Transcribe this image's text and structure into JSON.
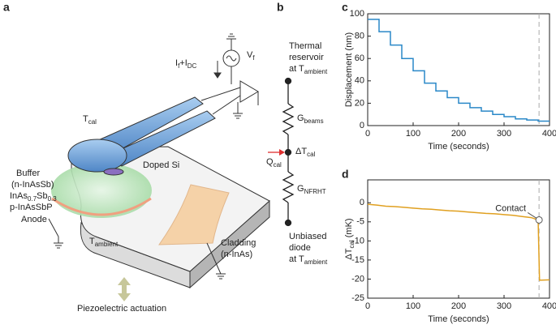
{
  "diagram": {
    "panel_a": {
      "label": "a",
      "texts": [
        [
          {
            "t": "I"
          },
          {
            "sub": "f"
          },
          {
            "t": "+I"
          },
          {
            "sub": "DC"
          }
        ],
        [
          {
            "t": "V"
          },
          {
            "sub": "f"
          }
        ],
        [
          {
            "t": "T"
          },
          {
            "sub": "cal"
          }
        ],
        [
          {
            "t": "Doped Si"
          }
        ],
        [
          {
            "t": "Buffer"
          }
        ],
        [
          {
            "t": "(n-InAsSb)"
          }
        ],
        [
          {
            "t": "InAs"
          },
          {
            "sub": "0.7"
          },
          {
            "t": "Sb"
          },
          {
            "sub": "0.3"
          }
        ],
        [
          {
            "t": "p-InAsSbP"
          }
        ],
        [
          {
            "t": "Anode"
          }
        ],
        [
          {
            "t": "T"
          },
          {
            "sub": "ambient"
          }
        ],
        [
          {
            "t": "Cladding"
          }
        ],
        [
          {
            "t": "(n-InAs)"
          }
        ],
        [
          {
            "t": "Piezoelectric actuation"
          }
        ]
      ]
    },
    "panel_b": {
      "label": "b",
      "texts": [
        [
          {
            "t": "Thermal"
          }
        ],
        [
          {
            "t": "reservoir"
          }
        ],
        [
          {
            "t": "at T"
          },
          {
            "sub": "ambient"
          }
        ],
        [
          {
            "t": "G"
          },
          {
            "sub": "beams"
          }
        ],
        [
          {
            "t": "ΔT"
          },
          {
            "sub": "cal"
          }
        ],
        [
          {
            "t": "Q"
          },
          {
            "sub": "cal"
          }
        ],
        [
          {
            "t": "G"
          },
          {
            "sub": "NFRHT"
          }
        ],
        [
          {
            "t": "Unbiased"
          }
        ],
        [
          {
            "t": "diode"
          }
        ],
        [
          {
            "t": "at T"
          },
          {
            "sub": "ambient"
          }
        ]
      ]
    }
  },
  "chart_data": [
    {
      "panel": "c",
      "type": "line",
      "color": "#2a88c8",
      "ylabel": [
        {
          "t": "Displacement (nm)"
        }
      ],
      "xlabel": "Time (seconds)",
      "x": [
        0,
        25,
        25,
        50,
        50,
        75,
        75,
        100,
        100,
        125,
        125,
        150,
        150,
        175,
        175,
        200,
        200,
        225,
        225,
        250,
        250,
        275,
        275,
        300,
        300,
        325,
        325,
        350,
        350,
        375,
        375,
        400
      ],
      "values": [
        95,
        95,
        84,
        84,
        72,
        72,
        60,
        60,
        49,
        49,
        38,
        38,
        31,
        31,
        25,
        25,
        20,
        20,
        16,
        16,
        13,
        13,
        10,
        10,
        8,
        8,
        6,
        6,
        5,
        5,
        4,
        4
      ],
      "xlim": [
        0,
        400
      ],
      "ylim": [
        0,
        100
      ],
      "xticks": [
        0,
        100,
        200,
        300,
        400
      ],
      "yticks": [
        0,
        20,
        40,
        60,
        80,
        100
      ],
      "vline_x": 377
    },
    {
      "panel": "d",
      "type": "line",
      "color": "#e0a020",
      "ylabel": [
        {
          "t": "ΔT"
        },
        {
          "sub": "cal"
        },
        {
          "t": " (mK)"
        }
      ],
      "xlabel": "Time (seconds)",
      "x": [
        0,
        20,
        40,
        60,
        80,
        100,
        120,
        140,
        160,
        180,
        200,
        220,
        240,
        260,
        280,
        300,
        320,
        340,
        360,
        375,
        378,
        400
      ],
      "values": [
        -0.4,
        -0.6,
        -0.9,
        -1.0,
        -1.2,
        -1.4,
        -1.6,
        -1.7,
        -1.9,
        -2.1,
        -2.2,
        -2.4,
        -2.6,
        -2.8,
        -2.9,
        -3.1,
        -3.3,
        -3.6,
        -3.9,
        -4.5,
        -20.3,
        -20.2
      ],
      "xlim": [
        0,
        400
      ],
      "ylim": [
        -25,
        6
      ],
      "xticks": [
        0,
        100,
        200,
        300,
        400
      ],
      "yticks": [
        0,
        -5,
        -10,
        -15,
        -20,
        -25
      ],
      "vline_x": 377,
      "annotation": {
        "text": "Contact",
        "x": 377,
        "y": -4.5
      }
    }
  ]
}
